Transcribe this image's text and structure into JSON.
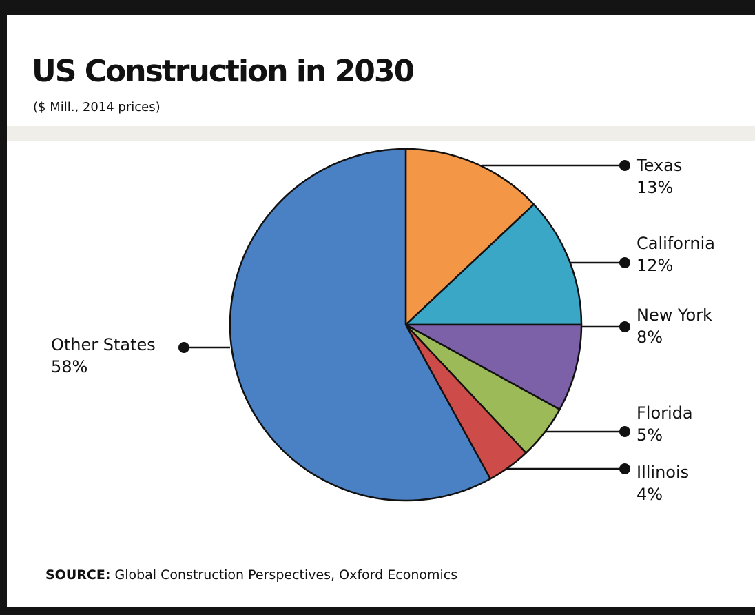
{
  "title": "US Construction in 2030",
  "subtitle": "($ Mill., 2014 prices)",
  "source": {
    "label": "SOURCE:",
    "text": "Global Construction Perspectives, Oxford Economics"
  },
  "chart_data": {
    "type": "pie",
    "title": "US Construction in 2030",
    "subtitle": "($ Mill., 2014 prices)",
    "slices": [
      {
        "label": "Texas",
        "value": 13,
        "value_label": "13%",
        "color": "#f39646"
      },
      {
        "label": "California",
        "value": 12,
        "value_label": "12%",
        "color": "#3aa7c6"
      },
      {
        "label": "New York",
        "value": 8,
        "value_label": "8%",
        "color": "#7d61a8"
      },
      {
        "label": "Florida",
        "value": 5,
        "value_label": "5%",
        "color": "#9cbb58"
      },
      {
        "label": "Illinois",
        "value": 4,
        "value_label": "4%",
        "color": "#cd4c4a"
      },
      {
        "label": "Other States",
        "value": 58,
        "value_label": "58%",
        "color": "#4a80c4"
      }
    ]
  }
}
